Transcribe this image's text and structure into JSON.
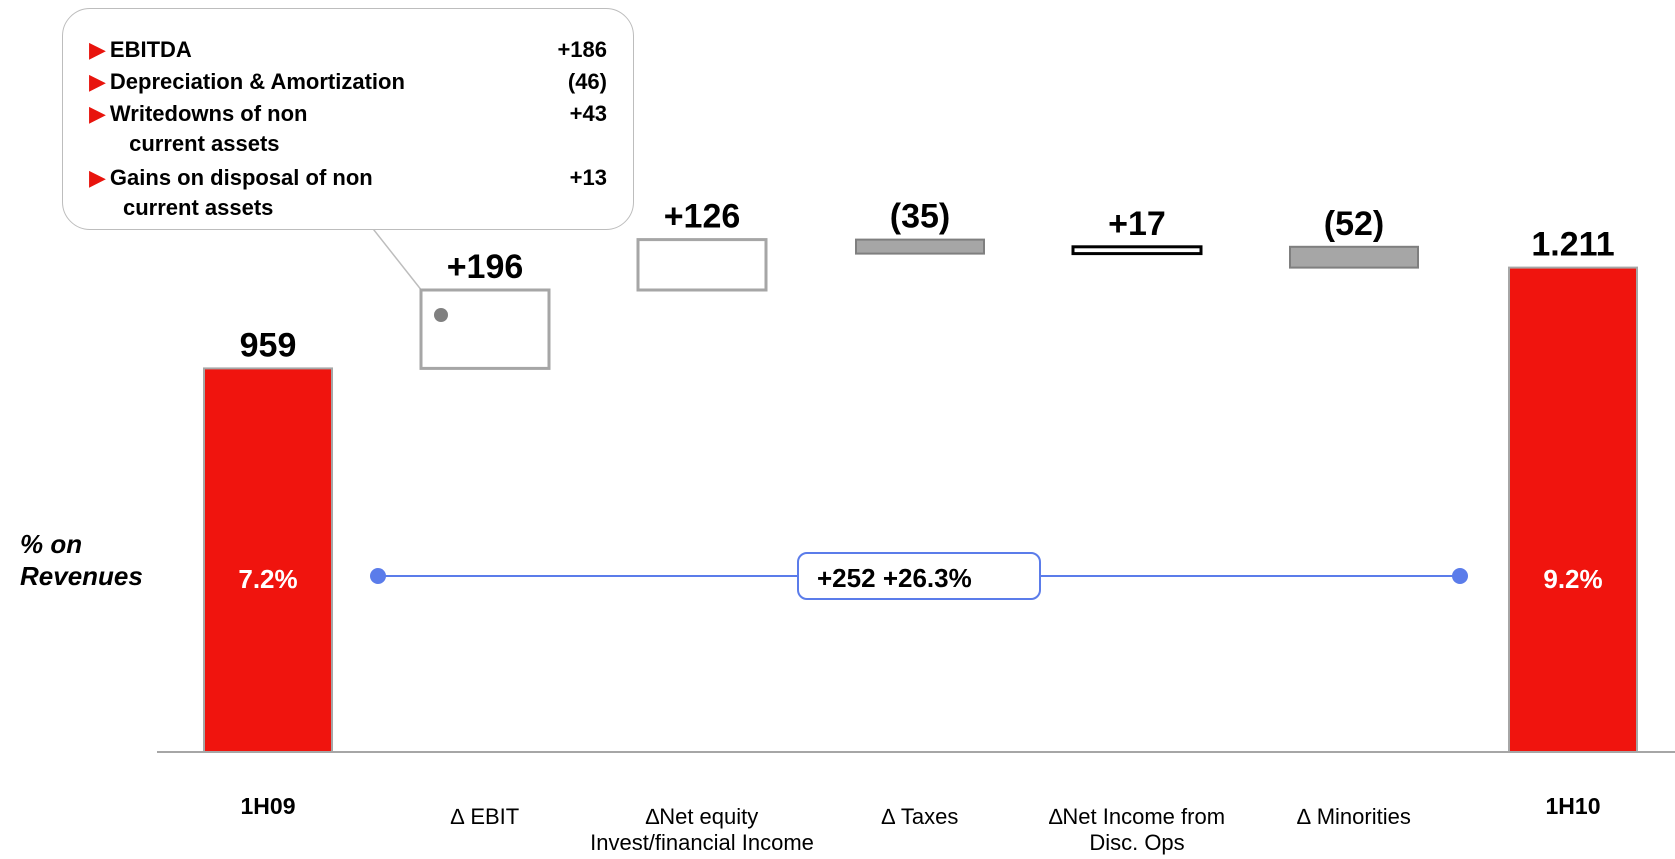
{
  "chart_data": {
    "type": "bar",
    "subtype": "waterfall",
    "categories": [
      "1H09",
      "∆ EBIT",
      "∆Net equity Invest/financial Income",
      "∆ Taxes",
      "∆Net Income from Disc. Ops",
      "∆ Minorities",
      "1H10"
    ],
    "category_lines": [
      [
        "1H09"
      ],
      [
        "∆ EBIT"
      ],
      [
        "∆Net equity",
        "Invest/financial Income"
      ],
      [
        "∆ Taxes"
      ],
      [
        "∆Net Income from",
        "Disc. Ops"
      ],
      [
        "∆ Minorities"
      ],
      [
        "1H10"
      ]
    ],
    "values": [
      959,
      196,
      126,
      -35,
      17,
      -52,
      1211
    ],
    "value_labels": [
      "959",
      "+196",
      "+126",
      "(35)",
      "+17",
      "(52)",
      "1.211"
    ],
    "bar_kind": [
      "total",
      "increase",
      "increase",
      "decrease",
      "increase",
      "decrease",
      "total"
    ],
    "percent_labels": {
      "1H09": "7.2%",
      "1H10": "9.2%"
    },
    "ylim": [
      0,
      1400
    ],
    "colors": {
      "total": "#f0140e",
      "increase_fill": "#ffffff",
      "increase_border": "#a6a6a6",
      "decrease": "#a6a6a6",
      "connector": "#5b7cea",
      "arrow": "#e8140d"
    }
  },
  "callout": {
    "items": [
      {
        "label": "EBITDA",
        "label2": "",
        "value": "+186"
      },
      {
        "label": "Depreciation & Amortization",
        "label2": "",
        "value": "(46)"
      },
      {
        "label": "Writedowns of non",
        "label2": " current assets",
        "value": "+43"
      },
      {
        "label": "Gains on disposal of non",
        "label2": "current assets",
        "value": "+13"
      }
    ],
    "arrow_glyph": "▶"
  },
  "ylabel": {
    "line1": "% on",
    "line2": "Revenues"
  },
  "growth_badge": {
    "delta": "+252",
    "pct": "+26.3%"
  }
}
